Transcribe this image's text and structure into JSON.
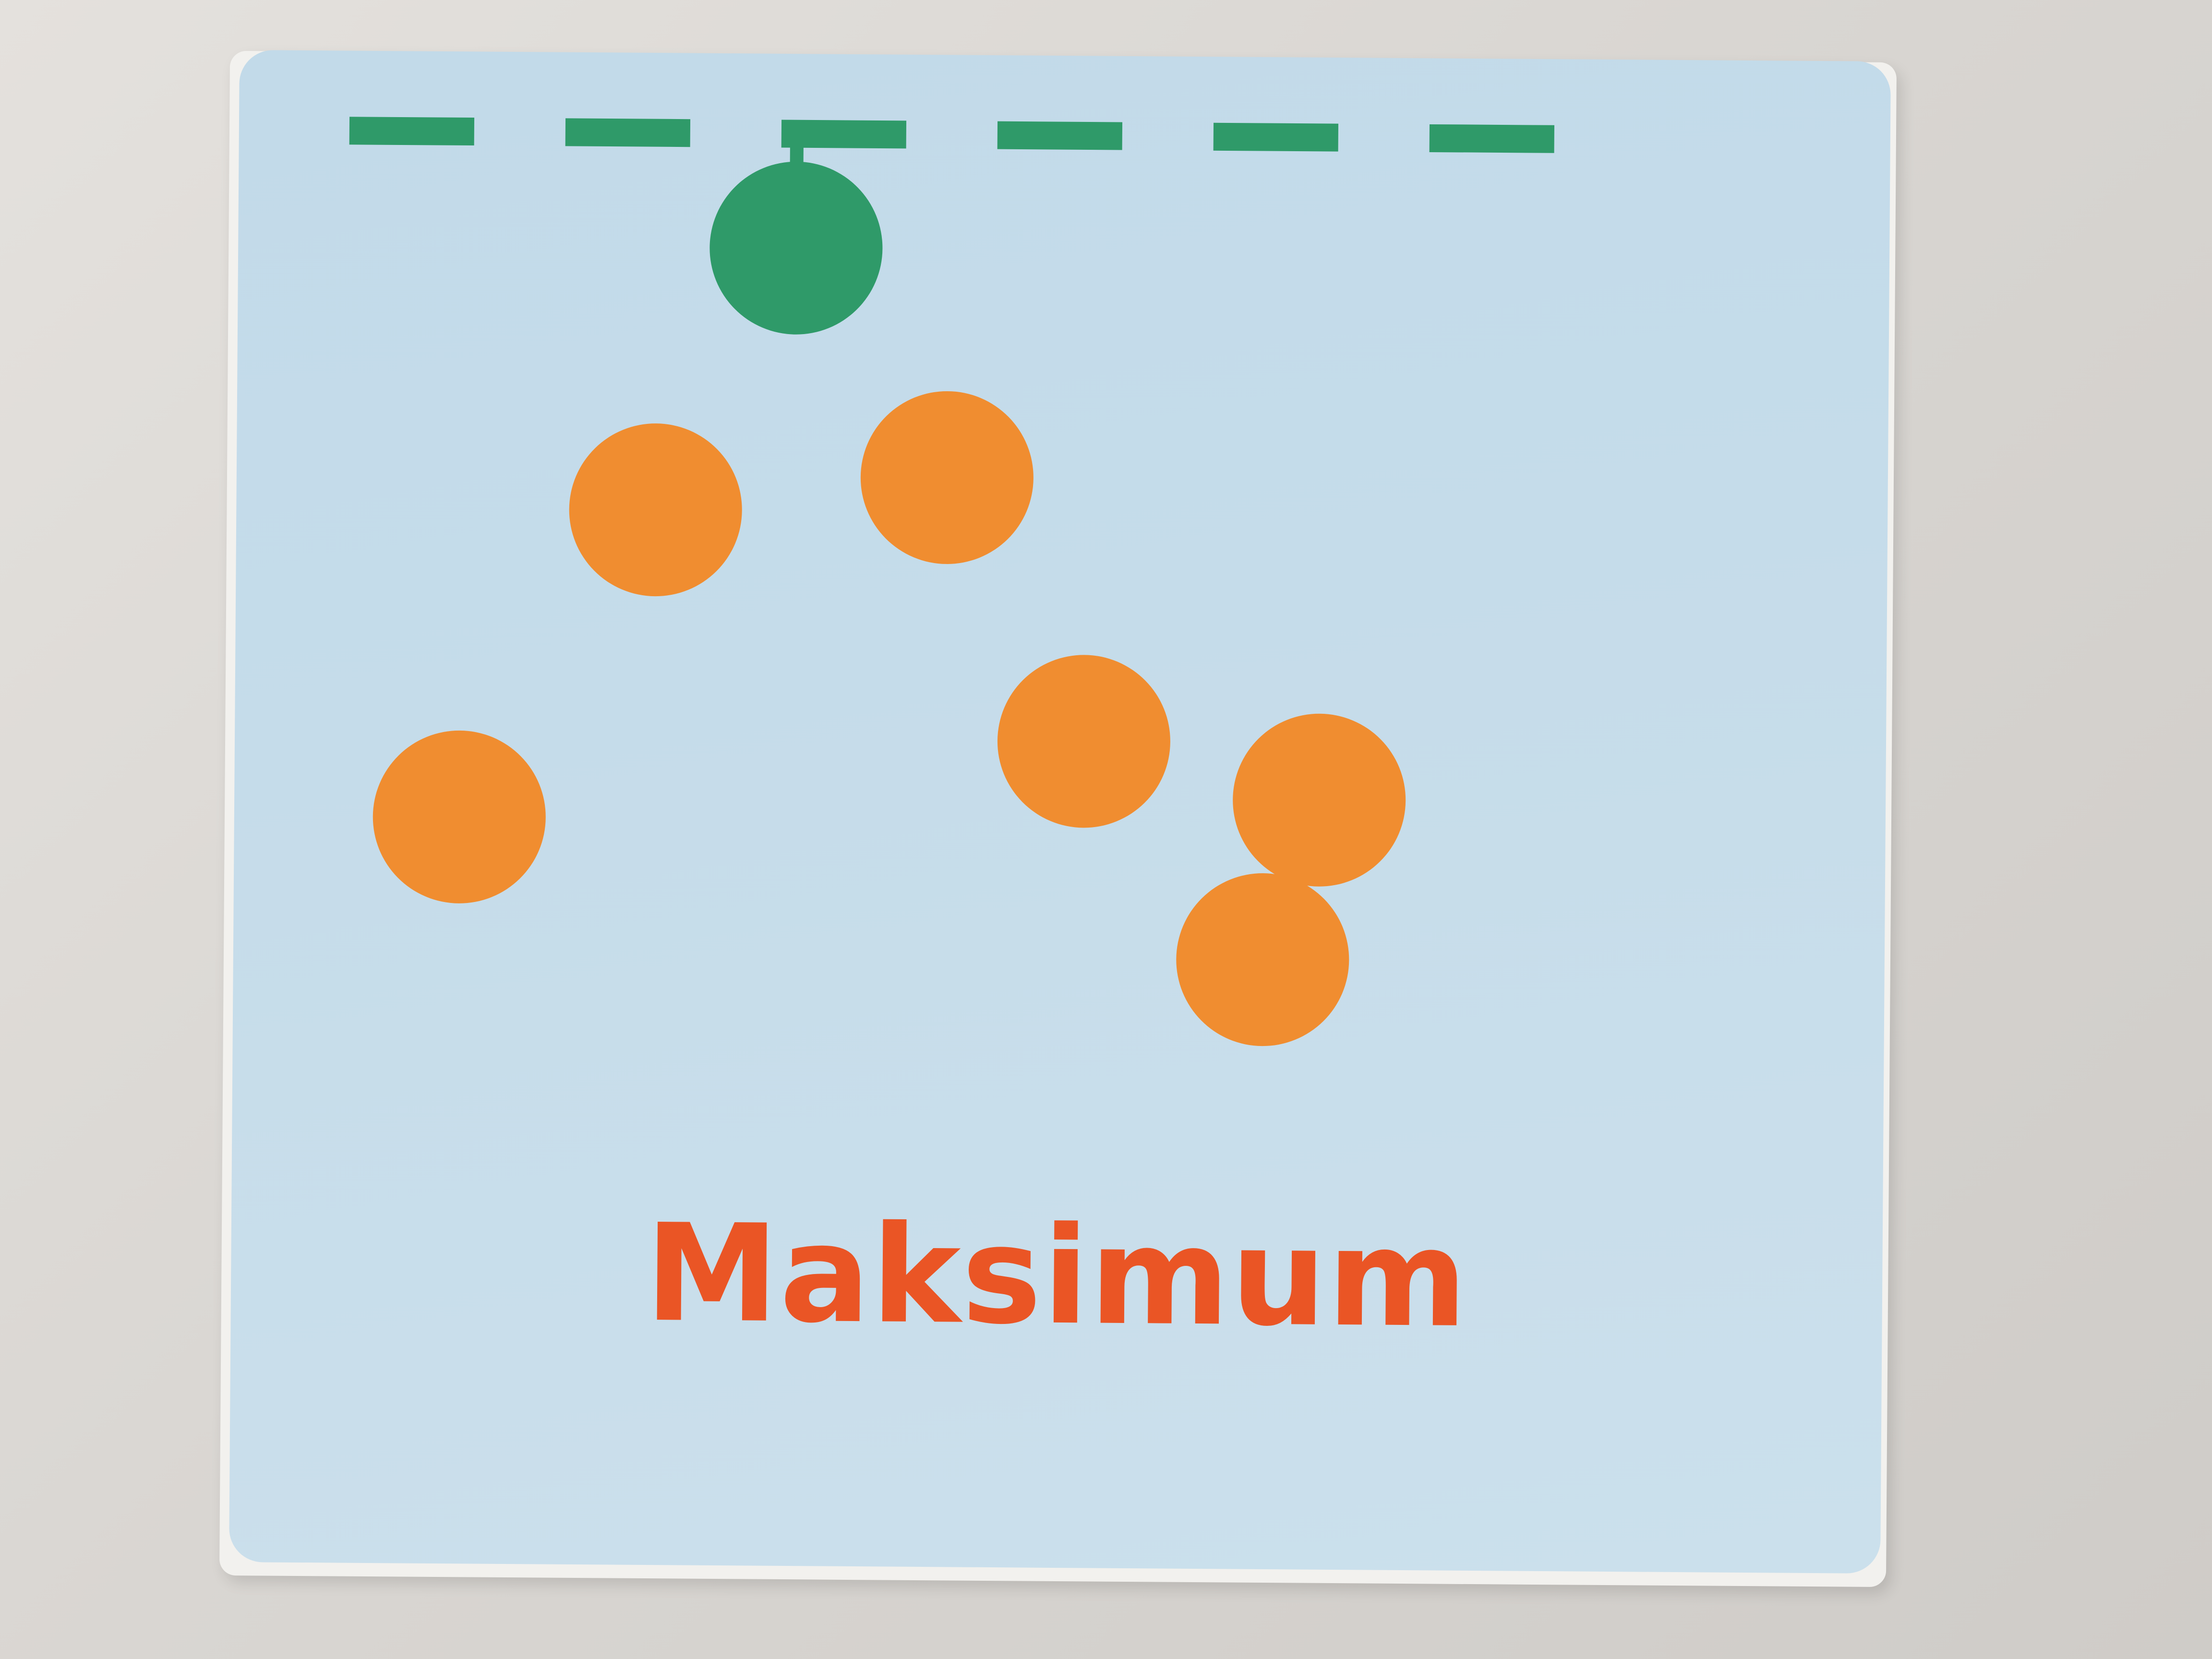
{
  "caption": "Maksimum",
  "colors": {
    "card_background": "#c5dcea",
    "dash_line": "#2f9a69",
    "maximum_dot": "#2f9a69",
    "data_dots": "#f08d30",
    "caption": "#ea5525"
  },
  "icons": [
    "dashed-line",
    "circle-dot"
  ],
  "chart_data": {
    "type": "scatter",
    "title": "",
    "xlabel": "",
    "ylabel": "",
    "xlim": [
      0,
      9
    ],
    "ylim": [
      0,
      10
    ],
    "grid": false,
    "points": [
      {
        "x": 1,
        "y": 3.3,
        "role": "data"
      },
      {
        "x": 2.4,
        "y": 6.0,
        "role": "data"
      },
      {
        "x": 3.4,
        "y": 8.3,
        "role": "maximum"
      },
      {
        "x": 4.5,
        "y": 6.3,
        "role": "data"
      },
      {
        "x": 5.5,
        "y": 4.0,
        "role": "data"
      },
      {
        "x": 6.8,
        "y": 2.1,
        "role": "data"
      },
      {
        "x": 7.2,
        "y": 3.5,
        "role": "data"
      }
    ],
    "reference_line": {
      "y": 9.3,
      "style": "dashed",
      "label": ""
    }
  }
}
